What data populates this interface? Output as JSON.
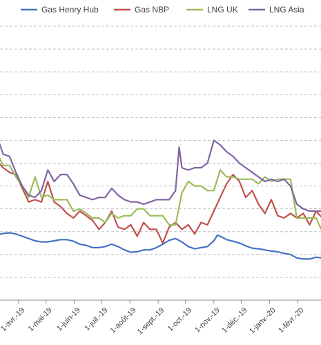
{
  "chart_data": {
    "type": "line",
    "title": "",
    "xlabel": "",
    "ylabel": "",
    "x_range": [
      "2019-03-01",
      "2020-02-28"
    ],
    "y_range": [
      0,
      12
    ],
    "grid": true,
    "legend_position": "top",
    "x_ticks": [
      {
        "label": "1-mars-19",
        "date": "2019-03-01"
      },
      {
        "label": "1-avr.-19",
        "date": "2019-04-01"
      },
      {
        "label": "1-mai-19",
        "date": "2019-05-01"
      },
      {
        "label": "1-juin-19",
        "date": "2019-06-01"
      },
      {
        "label": "1-juil.-19",
        "date": "2019-07-01"
      },
      {
        "label": "1-août-19",
        "date": "2019-08-01"
      },
      {
        "label": "1-sept.-19",
        "date": "2019-09-01"
      },
      {
        "label": "1-oct.-19",
        "date": "2019-10-01"
      },
      {
        "label": "1-nov.-19",
        "date": "2019-11-01"
      },
      {
        "label": "1-déc.-19",
        "date": "2019-12-01"
      },
      {
        "label": "1-janv.-20",
        "date": "2020-01-01"
      },
      {
        "label": "1-févr.-20",
        "date": "2020-02-01"
      }
    ],
    "series": [
      {
        "name": "Gas Henry Hub",
        "color": "#4472C4",
        "points": [
          [
            "2019-03-01",
            2.8
          ],
          [
            "2019-03-08",
            2.85
          ],
          [
            "2019-03-15",
            2.92
          ],
          [
            "2019-03-22",
            2.95
          ],
          [
            "2019-03-29",
            2.9
          ],
          [
            "2019-04-05",
            2.8
          ],
          [
            "2019-04-12",
            2.7
          ],
          [
            "2019-04-19",
            2.6
          ],
          [
            "2019-04-26",
            2.55
          ],
          [
            "2019-05-03",
            2.55
          ],
          [
            "2019-05-10",
            2.6
          ],
          [
            "2019-05-17",
            2.65
          ],
          [
            "2019-05-24",
            2.65
          ],
          [
            "2019-05-31",
            2.58
          ],
          [
            "2019-06-07",
            2.45
          ],
          [
            "2019-06-14",
            2.4
          ],
          [
            "2019-06-21",
            2.3
          ],
          [
            "2019-06-28",
            2.3
          ],
          [
            "2019-07-05",
            2.35
          ],
          [
            "2019-07-12",
            2.45
          ],
          [
            "2019-07-19",
            2.35
          ],
          [
            "2019-07-26",
            2.2
          ],
          [
            "2019-08-02",
            2.1
          ],
          [
            "2019-08-09",
            2.12
          ],
          [
            "2019-08-16",
            2.2
          ],
          [
            "2019-08-23",
            2.2
          ],
          [
            "2019-08-30",
            2.3
          ],
          [
            "2019-09-06",
            2.45
          ],
          [
            "2019-09-13",
            2.62
          ],
          [
            "2019-09-20",
            2.7
          ],
          [
            "2019-09-27",
            2.55
          ],
          [
            "2019-10-04",
            2.35
          ],
          [
            "2019-10-11",
            2.25
          ],
          [
            "2019-10-18",
            2.3
          ],
          [
            "2019-10-25",
            2.35
          ],
          [
            "2019-11-01",
            2.6
          ],
          [
            "2019-11-05",
            2.85
          ],
          [
            "2019-11-08",
            2.8
          ],
          [
            "2019-11-15",
            2.65
          ],
          [
            "2019-11-22",
            2.58
          ],
          [
            "2019-11-29",
            2.5
          ],
          [
            "2019-12-06",
            2.38
          ],
          [
            "2019-12-13",
            2.28
          ],
          [
            "2019-12-20",
            2.25
          ],
          [
            "2019-12-27",
            2.2
          ],
          [
            "2020-01-03",
            2.15
          ],
          [
            "2020-01-10",
            2.12
          ],
          [
            "2020-01-17",
            2.05
          ],
          [
            "2020-01-24",
            2.0
          ],
          [
            "2020-01-31",
            1.85
          ],
          [
            "2020-02-07",
            1.8
          ],
          [
            "2020-02-14",
            1.8
          ],
          [
            "2020-02-21",
            1.88
          ],
          [
            "2020-02-28",
            1.85
          ]
        ]
      },
      {
        "name": "Gas NBP",
        "color": "#C0504D",
        "points": [
          [
            "2019-03-01",
            6.3
          ],
          [
            "2019-03-08",
            6.1
          ],
          [
            "2019-03-15",
            5.8
          ],
          [
            "2019-03-22",
            5.6
          ],
          [
            "2019-03-29",
            5.5
          ],
          [
            "2019-04-05",
            4.9
          ],
          [
            "2019-04-12",
            4.3
          ],
          [
            "2019-04-19",
            4.4
          ],
          [
            "2019-04-26",
            4.3
          ],
          [
            "2019-05-03",
            5.2
          ],
          [
            "2019-05-10",
            4.3
          ],
          [
            "2019-05-17",
            4.1
          ],
          [
            "2019-05-24",
            3.8
          ],
          [
            "2019-05-31",
            3.6
          ],
          [
            "2019-06-07",
            3.9
          ],
          [
            "2019-06-14",
            3.7
          ],
          [
            "2019-06-21",
            3.5
          ],
          [
            "2019-06-28",
            3.1
          ],
          [
            "2019-07-05",
            3.4
          ],
          [
            "2019-07-12",
            3.9
          ],
          [
            "2019-07-19",
            3.2
          ],
          [
            "2019-07-26",
            3.1
          ],
          [
            "2019-08-02",
            3.3
          ],
          [
            "2019-08-09",
            2.8
          ],
          [
            "2019-08-16",
            3.4
          ],
          [
            "2019-08-23",
            3.1
          ],
          [
            "2019-08-30",
            3.1
          ],
          [
            "2019-09-06",
            2.5
          ],
          [
            "2019-09-13",
            3.2
          ],
          [
            "2019-09-20",
            3.4
          ],
          [
            "2019-09-27",
            3.1
          ],
          [
            "2019-10-04",
            3.3
          ],
          [
            "2019-10-11",
            2.9
          ],
          [
            "2019-10-18",
            3.4
          ],
          [
            "2019-10-25",
            3.3
          ],
          [
            "2019-11-01",
            3.9
          ],
          [
            "2019-11-08",
            4.5
          ],
          [
            "2019-11-15",
            5.1
          ],
          [
            "2019-11-22",
            5.5
          ],
          [
            "2019-11-29",
            5.2
          ],
          [
            "2019-12-06",
            4.5
          ],
          [
            "2019-12-13",
            4.8
          ],
          [
            "2019-12-20",
            4.2
          ],
          [
            "2019-12-27",
            3.8
          ],
          [
            "2020-01-03",
            4.4
          ],
          [
            "2020-01-10",
            3.7
          ],
          [
            "2020-01-17",
            3.6
          ],
          [
            "2020-01-24",
            3.8
          ],
          [
            "2020-01-31",
            3.6
          ],
          [
            "2020-02-07",
            3.8
          ],
          [
            "2020-02-14",
            3.3
          ],
          [
            "2020-02-21",
            3.9
          ],
          [
            "2020-02-28",
            3.6
          ]
        ]
      },
      {
        "name": "LNG UK",
        "color": "#9BBB59",
        "points": [
          [
            "2019-03-01",
            6.6
          ],
          [
            "2019-03-08",
            6.5
          ],
          [
            "2019-03-15",
            5.9
          ],
          [
            "2019-03-22",
            5.9
          ],
          [
            "2019-03-29",
            5.4
          ],
          [
            "2019-04-05",
            5.0
          ],
          [
            "2019-04-12",
            4.5
          ],
          [
            "2019-04-19",
            5.4
          ],
          [
            "2019-04-26",
            4.5
          ],
          [
            "2019-05-03",
            4.6
          ],
          [
            "2019-05-10",
            4.4
          ],
          [
            "2019-05-17",
            4.4
          ],
          [
            "2019-05-24",
            4.4
          ],
          [
            "2019-05-31",
            3.9
          ],
          [
            "2019-06-07",
            4.0
          ],
          [
            "2019-06-14",
            3.8
          ],
          [
            "2019-06-21",
            3.6
          ],
          [
            "2019-06-28",
            3.6
          ],
          [
            "2019-07-05",
            3.4
          ],
          [
            "2019-07-12",
            3.8
          ],
          [
            "2019-07-19",
            3.6
          ],
          [
            "2019-07-26",
            3.7
          ],
          [
            "2019-08-02",
            3.7
          ],
          [
            "2019-08-09",
            4.0
          ],
          [
            "2019-08-16",
            4.0
          ],
          [
            "2019-08-23",
            3.7
          ],
          [
            "2019-08-30",
            3.7
          ],
          [
            "2019-09-06",
            3.7
          ],
          [
            "2019-09-13",
            3.3
          ],
          [
            "2019-09-20",
            3.3
          ],
          [
            "2019-09-27",
            4.7
          ],
          [
            "2019-10-04",
            5.2
          ],
          [
            "2019-10-11",
            5.0
          ],
          [
            "2019-10-18",
            5.0
          ],
          [
            "2019-10-25",
            4.8
          ],
          [
            "2019-11-01",
            4.8
          ],
          [
            "2019-11-08",
            5.7
          ],
          [
            "2019-11-15",
            5.4
          ],
          [
            "2019-11-22",
            5.4
          ],
          [
            "2019-11-29",
            5.3
          ],
          [
            "2019-12-06",
            5.3
          ],
          [
            "2019-12-13",
            5.3
          ],
          [
            "2019-12-20",
            5.1
          ],
          [
            "2019-12-27",
            5.4
          ],
          [
            "2020-01-03",
            5.2
          ],
          [
            "2020-01-10",
            5.3
          ],
          [
            "2020-01-17",
            5.3
          ],
          [
            "2020-01-24",
            5.3
          ],
          [
            "2020-01-31",
            3.6
          ],
          [
            "2020-02-07",
            3.6
          ],
          [
            "2020-02-14",
            3.6
          ],
          [
            "2020-02-21",
            3.6
          ],
          [
            "2020-02-28",
            3.0
          ]
        ]
      },
      {
        "name": "LNG Asia",
        "color": "#8064A2",
        "points": [
          [
            "2019-03-01",
            6.8
          ],
          [
            "2019-03-08",
            7.2
          ],
          [
            "2019-03-15",
            6.4
          ],
          [
            "2019-03-22",
            6.3
          ],
          [
            "2019-03-29",
            5.6
          ],
          [
            "2019-04-05",
            5.0
          ],
          [
            "2019-04-12",
            4.6
          ],
          [
            "2019-04-19",
            4.5
          ],
          [
            "2019-04-26",
            4.8
          ],
          [
            "2019-05-03",
            5.7
          ],
          [
            "2019-05-10",
            5.2
          ],
          [
            "2019-05-17",
            5.5
          ],
          [
            "2019-05-24",
            5.5
          ],
          [
            "2019-05-31",
            5.1
          ],
          [
            "2019-06-07",
            4.6
          ],
          [
            "2019-06-14",
            4.5
          ],
          [
            "2019-06-21",
            4.4
          ],
          [
            "2019-06-28",
            4.5
          ],
          [
            "2019-07-05",
            4.5
          ],
          [
            "2019-07-12",
            4.9
          ],
          [
            "2019-07-19",
            4.6
          ],
          [
            "2019-07-26",
            4.4
          ],
          [
            "2019-08-02",
            4.3
          ],
          [
            "2019-08-09",
            4.3
          ],
          [
            "2019-08-16",
            4.2
          ],
          [
            "2019-08-23",
            4.3
          ],
          [
            "2019-08-30",
            4.4
          ],
          [
            "2019-09-06",
            4.4
          ],
          [
            "2019-09-13",
            4.4
          ],
          [
            "2019-09-20",
            4.8
          ],
          [
            "2019-09-24",
            6.7
          ],
          [
            "2019-09-27",
            5.8
          ],
          [
            "2019-10-04",
            5.7
          ],
          [
            "2019-10-11",
            5.8
          ],
          [
            "2019-10-18",
            5.8
          ],
          [
            "2019-10-25",
            6.0
          ],
          [
            "2019-11-01",
            7.0
          ],
          [
            "2019-11-08",
            6.8
          ],
          [
            "2019-11-15",
            6.5
          ],
          [
            "2019-11-22",
            6.3
          ],
          [
            "2019-11-29",
            6.0
          ],
          [
            "2019-12-06",
            5.8
          ],
          [
            "2019-12-13",
            5.6
          ],
          [
            "2019-12-20",
            5.4
          ],
          [
            "2019-12-27",
            5.2
          ],
          [
            "2020-01-03",
            5.3
          ],
          [
            "2020-01-10",
            5.2
          ],
          [
            "2020-01-17",
            5.3
          ],
          [
            "2020-01-24",
            5.0
          ],
          [
            "2020-01-31",
            4.2
          ],
          [
            "2020-02-07",
            4.0
          ],
          [
            "2020-02-14",
            3.9
          ],
          [
            "2020-02-21",
            3.9
          ],
          [
            "2020-02-28",
            3.9
          ]
        ]
      }
    ]
  }
}
